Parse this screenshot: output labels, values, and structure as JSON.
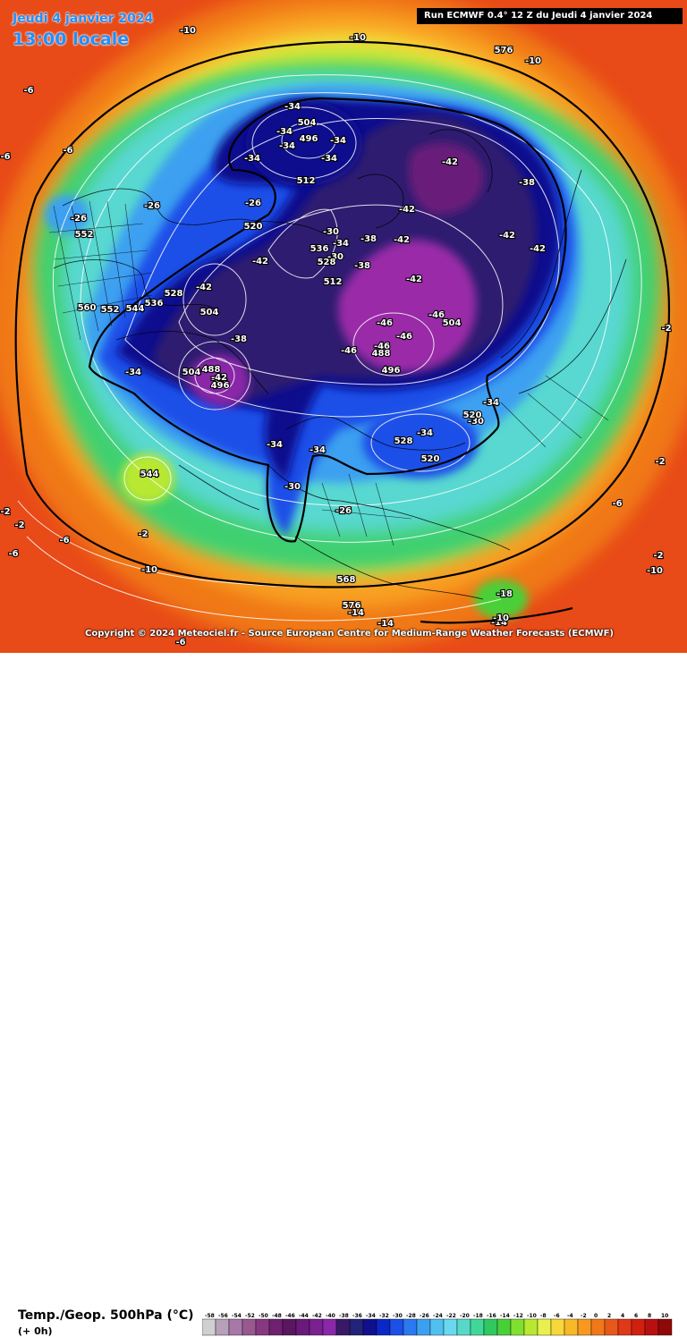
{
  "header": {
    "date": "Jeudi 4 janvier 2024",
    "time": "13:00 locale",
    "run": "Run ECMWF 0.4° 12 Z du Jeudi 4 janvier 2024"
  },
  "copyright": "Copyright © 2024 Meteociel.fr - Source European Centre for Medium-Range Weather Forecasts (ECMWF)",
  "legend": {
    "variable": "Temp./Geop. 500hPa (°C)",
    "lead": "(+ 0h)",
    "ticks": [
      "-58",
      "-56",
      "-54",
      "-52",
      "-50",
      "-48",
      "-46",
      "-44",
      "-42",
      "-40",
      "-38",
      "-36",
      "-34",
      "-32",
      "-30",
      "-28",
      "-26",
      "-24",
      "-22",
      "-20",
      "-18",
      "-16",
      "-14",
      "-12",
      "-10",
      "-8",
      "-6",
      "-4",
      "-2",
      "0",
      "2",
      "4",
      "6",
      "8",
      "10"
    ],
    "colors": [
      "#d0d0d0",
      "#b8a0b8",
      "#a878a8",
      "#985890",
      "#883880",
      "#702070",
      "#5a1660",
      "#6a1a7a",
      "#7a2090",
      "#8a28a8",
      "#3a1868",
      "#23237a",
      "#10108e",
      "#0a28c8",
      "#1c50e8",
      "#2c78f0",
      "#3ca0f0",
      "#50c0f0",
      "#68d8f0",
      "#58d8c8",
      "#40d898",
      "#30c860",
      "#48d038",
      "#80e030",
      "#b8e830",
      "#e8f050",
      "#f8d838",
      "#f8b828",
      "#f89820",
      "#f07818",
      "#e85818",
      "#e03818",
      "#d02010",
      "#b81010",
      "#900808"
    ]
  },
  "labels": {
    "temps": [
      "-34",
      "-34",
      "-34",
      "-34",
      "-34",
      "-34",
      "-42",
      "-42",
      "-42",
      "-42",
      "-42",
      "-42",
      "-42",
      "-38",
      "-38",
      "-38",
      "-30",
      "-30",
      "-34",
      "-34",
      "-34",
      "-26",
      "-26",
      "-26",
      "-42",
      "-38",
      "-34",
      "-46",
      "-46",
      "-46",
      "-46",
      "-46",
      "-42",
      "-34",
      "-30",
      "-30",
      "-34",
      "-34",
      "-26",
      "-14",
      "-10",
      "-10",
      "-10",
      "-6",
      "-6",
      "-6",
      "-6",
      "-10",
      "-6",
      "-2",
      "-2",
      "-2",
      "-6",
      "-2",
      "-10",
      "-14",
      "-18",
      "-10",
      "-6",
      "-14",
      "-2",
      "-2"
    ],
    "geop": [
      "504",
      "496",
      "512",
      "520",
      "536",
      "528",
      "512",
      "504",
      "488",
      "496",
      "504",
      "488",
      "496",
      "504",
      "528",
      "520",
      "520",
      "576",
      "552",
      "560",
      "552",
      "544",
      "536",
      "528",
      "544",
      "568",
      "576"
    ]
  }
}
